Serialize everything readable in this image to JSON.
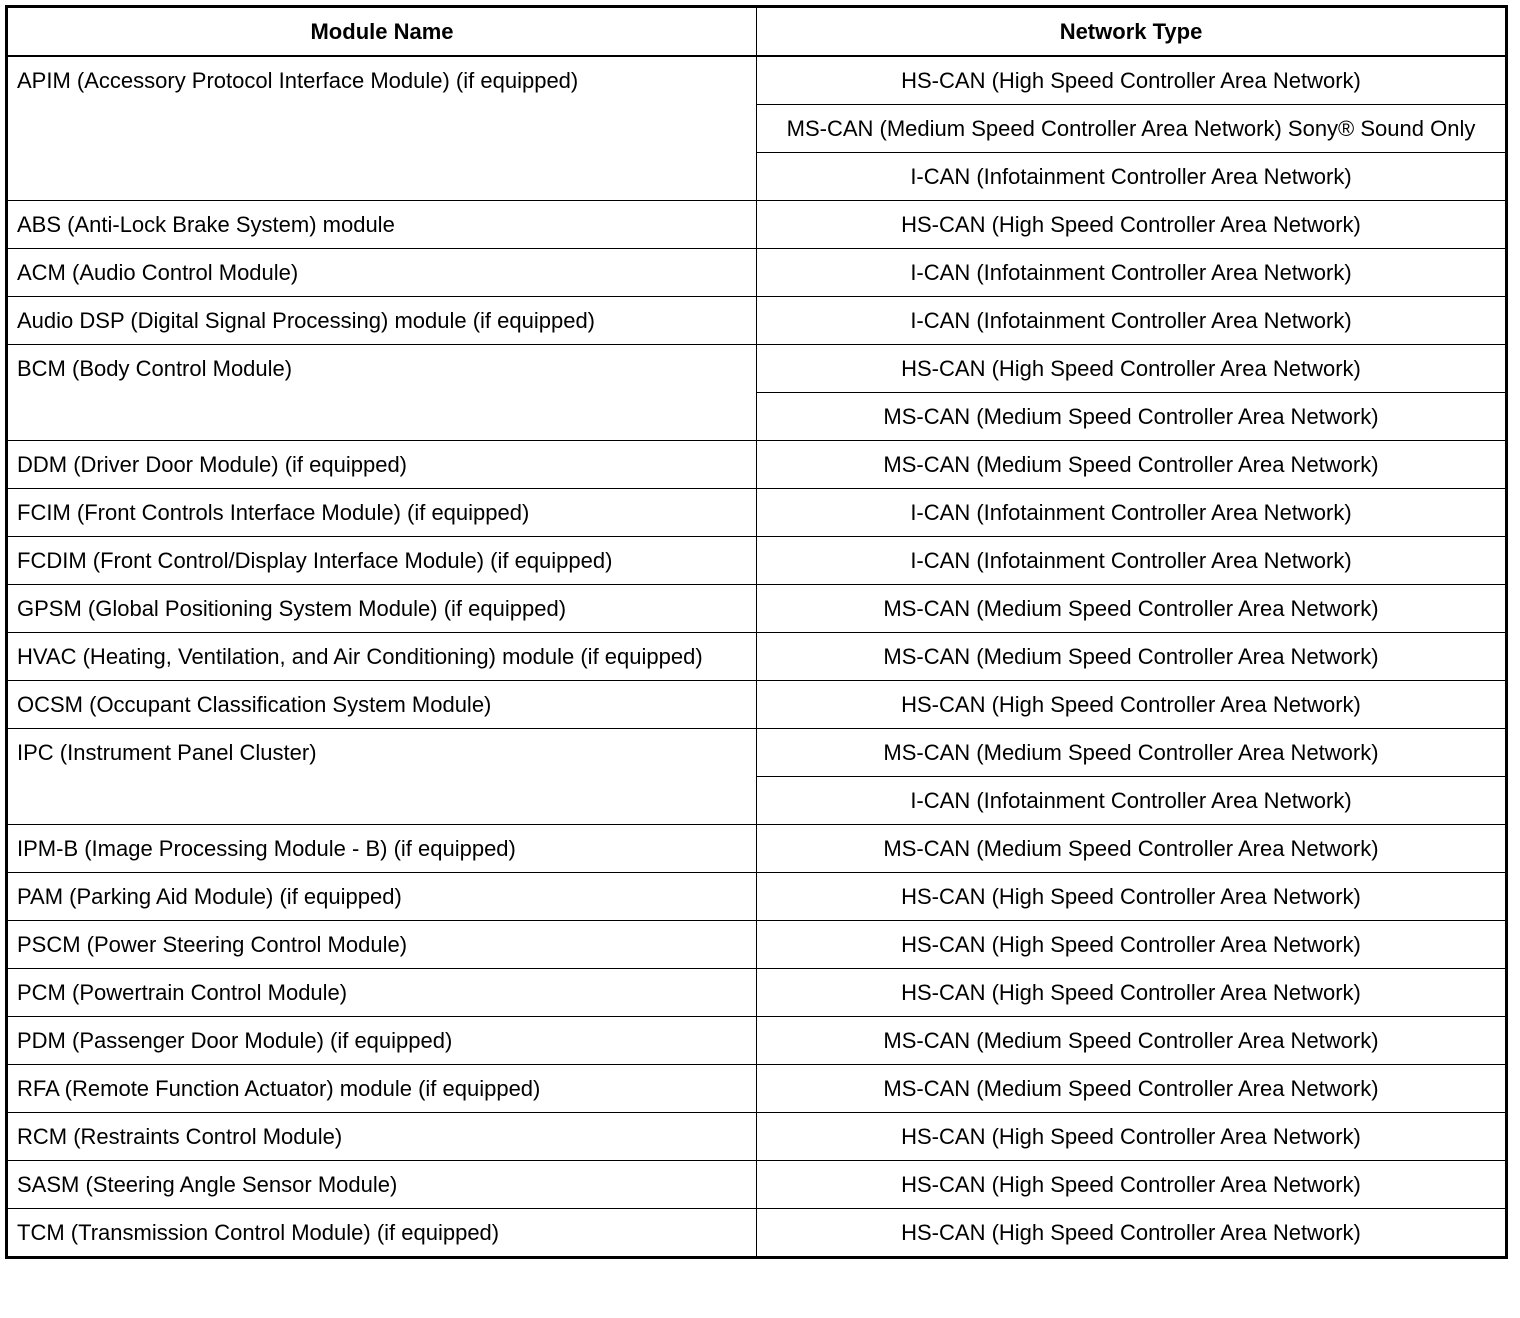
{
  "table": {
    "headers": [
      "Module Name",
      "Network Type"
    ],
    "rows": [
      {
        "module": "APIM (Accessory Protocol Interface Module) (if equipped)",
        "networks": [
          "HS-CAN (High Speed Controller Area Network)",
          "MS-CAN (Medium Speed Controller Area Network) Sony® Sound Only",
          "I-CAN (Infotainment Controller Area Network)"
        ]
      },
      {
        "module": "ABS (Anti-Lock Brake System) module",
        "networks": [
          "HS-CAN (High Speed Controller Area Network)"
        ]
      },
      {
        "module": "ACM (Audio Control Module)",
        "networks": [
          "I-CAN (Infotainment Controller Area Network)"
        ]
      },
      {
        "module": "Audio DSP (Digital Signal Processing) module (if equipped)",
        "networks": [
          "I-CAN (Infotainment Controller Area Network)"
        ]
      },
      {
        "module": "BCM (Body Control Module)",
        "networks": [
          "HS-CAN (High Speed Controller Area Network)",
          "MS-CAN (Medium Speed Controller Area Network)"
        ]
      },
      {
        "module": "DDM (Driver Door Module) (if equipped)",
        "networks": [
          "MS-CAN (Medium Speed Controller Area Network)"
        ]
      },
      {
        "module": "FCIM (Front Controls Interface Module) (if equipped)",
        "networks": [
          "I-CAN (Infotainment Controller Area Network)"
        ]
      },
      {
        "module": "FCDIM (Front Control/Display Interface Module) (if equipped)",
        "networks": [
          "I-CAN (Infotainment Controller Area Network)"
        ]
      },
      {
        "module": "GPSM (Global Positioning System Module) (if equipped)",
        "networks": [
          "MS-CAN (Medium Speed Controller Area Network)"
        ]
      },
      {
        "module": "HVAC (Heating, Ventilation, and Air Conditioning) module (if equipped)",
        "networks": [
          "MS-CAN (Medium Speed Controller Area Network)"
        ]
      },
      {
        "module": "OCSM (Occupant Classification System Module)",
        "networks": [
          "HS-CAN (High Speed Controller Area Network)"
        ]
      },
      {
        "module": "IPC (Instrument Panel Cluster)",
        "networks": [
          "MS-CAN (Medium Speed Controller Area Network)",
          "I-CAN (Infotainment Controller Area Network)"
        ]
      },
      {
        "module": "IPM-B (Image Processing Module - B) (if equipped)",
        "networks": [
          "MS-CAN (Medium Speed Controller Area Network)"
        ]
      },
      {
        "module": "PAM (Parking Aid Module) (if equipped)",
        "networks": [
          "HS-CAN (High Speed Controller Area Network)"
        ]
      },
      {
        "module": "PSCM (Power Steering Control Module)",
        "networks": [
          "HS-CAN (High Speed Controller Area Network)"
        ]
      },
      {
        "module": "PCM (Powertrain Control Module)",
        "networks": [
          "HS-CAN (High Speed Controller Area Network)"
        ]
      },
      {
        "module": "PDM (Passenger Door Module) (if equipped)",
        "networks": [
          "MS-CAN (Medium Speed Controller Area Network)"
        ]
      },
      {
        "module": "RFA (Remote Function Actuator) module (if equipped)",
        "networks": [
          "MS-CAN (Medium Speed Controller Area Network)"
        ]
      },
      {
        "module": "RCM (Restraints Control Module)",
        "networks": [
          "HS-CAN (High Speed Controller Area Network)"
        ]
      },
      {
        "module": "SASM (Steering Angle Sensor Module)",
        "networks": [
          "HS-CAN (High Speed Controller Area Network)"
        ]
      },
      {
        "module": "TCM (Transmission Control Module) (if equipped)",
        "networks": [
          "HS-CAN (High Speed Controller Area Network)"
        ]
      }
    ]
  }
}
